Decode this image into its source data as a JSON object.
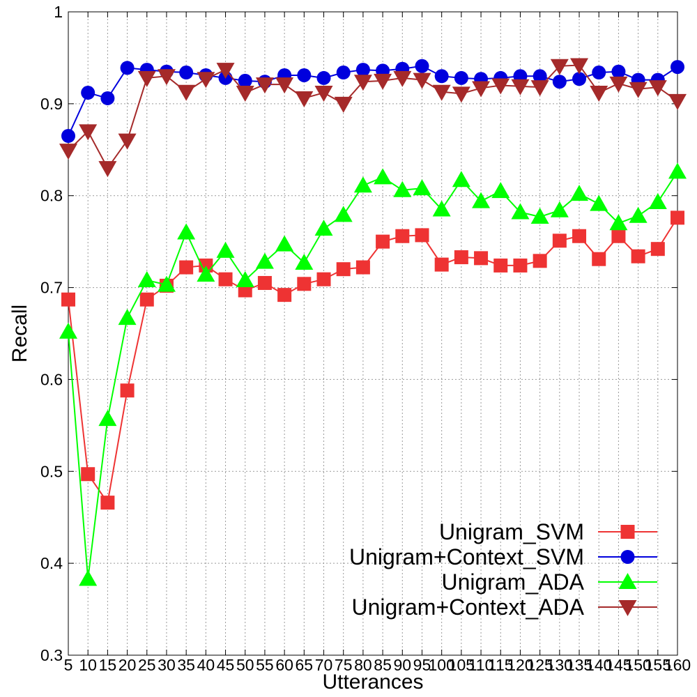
{
  "chart_data": {
    "type": "line",
    "title": "",
    "xlabel": "Utterances",
    "ylabel": "Recall",
    "ylim": [
      0.3,
      1.0
    ],
    "yticks": [
      "0.3",
      "0.4",
      "0.5",
      "0.6",
      "0.7",
      "0.8",
      "0.9",
      "1"
    ],
    "x": [
      5,
      10,
      15,
      20,
      25,
      30,
      35,
      40,
      45,
      50,
      55,
      60,
      65,
      70,
      75,
      80,
      85,
      90,
      95,
      100,
      105,
      110,
      115,
      120,
      125,
      130,
      135,
      140,
      145,
      150,
      155,
      160
    ],
    "xticks": [
      "5",
      "10",
      "15",
      "20",
      "25",
      "30",
      "35",
      "40",
      "45",
      "50",
      "55",
      "60",
      "65",
      "70",
      "75",
      "80",
      "85",
      "90",
      "95",
      "100",
      "105",
      "110",
      "115",
      "120",
      "125",
      "130",
      "135",
      "140",
      "145",
      "150",
      "155",
      "160"
    ],
    "grid": true,
    "legend_position": "bottom-right",
    "series": [
      {
        "name": "Unigram_SVM",
        "color": "#ee3333",
        "marker": "square",
        "values": [
          0.687,
          0.497,
          0.466,
          0.588,
          0.687,
          0.702,
          0.722,
          0.724,
          0.709,
          0.697,
          0.705,
          0.692,
          0.704,
          0.709,
          0.72,
          0.722,
          0.75,
          0.756,
          0.757,
          0.725,
          0.733,
          0.732,
          0.724,
          0.724,
          0.729,
          0.751,
          0.756,
          0.731,
          0.756,
          0.734,
          0.742,
          0.776
        ]
      },
      {
        "name": "Unigram+Context_SVM",
        "color": "#0000dd",
        "marker": "circle",
        "values": [
          0.865,
          0.912,
          0.906,
          0.939,
          0.937,
          0.935,
          0.934,
          0.931,
          0.928,
          0.925,
          0.924,
          0.931,
          0.931,
          0.928,
          0.934,
          0.937,
          0.936,
          0.938,
          0.941,
          0.93,
          0.928,
          0.927,
          0.928,
          0.93,
          0.93,
          0.924,
          0.927,
          0.934,
          0.935,
          0.926,
          0.926,
          0.94
        ]
      },
      {
        "name": "Unigram_ADA",
        "color": "#00ff00",
        "marker": "triangle-up",
        "values": [
          0.652,
          0.383,
          0.557,
          0.667,
          0.708,
          0.703,
          0.76,
          0.714,
          0.74,
          0.708,
          0.728,
          0.747,
          0.727,
          0.764,
          0.779,
          0.811,
          0.82,
          0.806,
          0.808,
          0.785,
          0.817,
          0.794,
          0.805,
          0.782,
          0.777,
          0.784,
          0.802,
          0.791,
          0.77,
          0.778,
          0.793,
          0.826
        ]
      },
      {
        "name": "Unigram+Context_ADA",
        "color": "#a52a2a",
        "marker": "triangle-down",
        "values": [
          0.849,
          0.87,
          0.83,
          0.86,
          0.928,
          0.93,
          0.913,
          0.927,
          0.937,
          0.912,
          0.921,
          0.921,
          0.906,
          0.912,
          0.9,
          0.924,
          0.925,
          0.928,
          0.926,
          0.913,
          0.911,
          0.917,
          0.92,
          0.919,
          0.918,
          0.941,
          0.942,
          0.912,
          0.922,
          0.916,
          0.918,
          0.903
        ]
      }
    ]
  }
}
